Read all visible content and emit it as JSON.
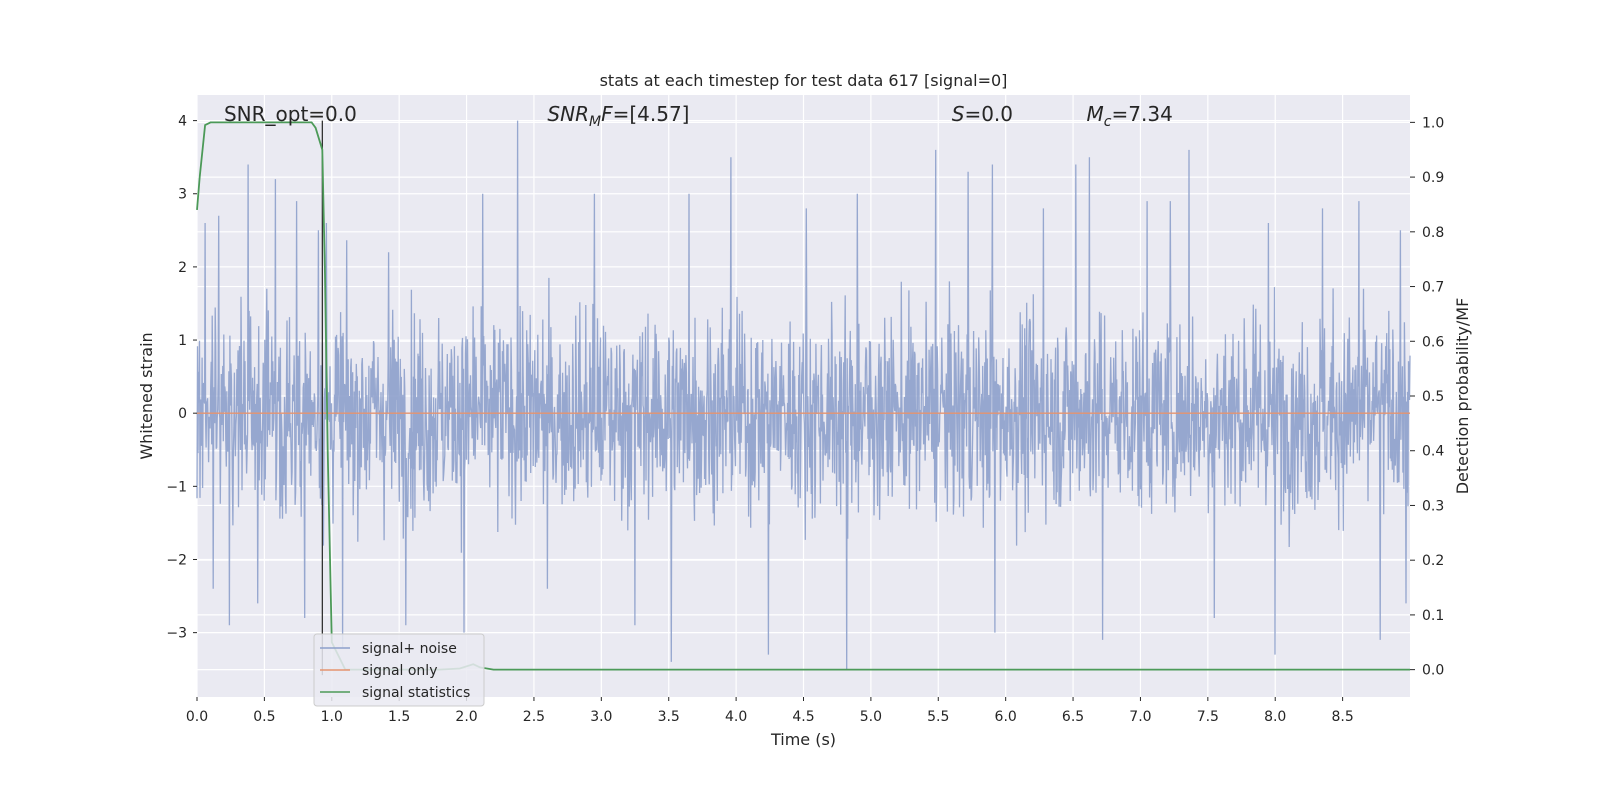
{
  "chart_data": {
    "type": "line",
    "title": "stats at each timestep for test data 617 [signal=0]",
    "xlabel": "Time (s)",
    "ylabel": "Whitened strain",
    "y2label": "Detection probability/MF",
    "xlim": [
      0.0,
      9.0
    ],
    "ylim": [
      -3.88,
      4.35
    ],
    "y2lim": [
      -0.05,
      1.05
    ],
    "x_ticks": [
      0.0,
      0.5,
      1.0,
      1.5,
      2.0,
      2.5,
      3.0,
      3.5,
      4.0,
      4.5,
      5.0,
      5.5,
      6.0,
      6.5,
      7.0,
      7.5,
      8.0,
      8.5
    ],
    "x_tick_labels": [
      "0.0",
      "0.5",
      "1.0",
      "1.5",
      "2.0",
      "2.5",
      "3.0",
      "3.5",
      "4.0",
      "4.5",
      "5.0",
      "5.5",
      "6.0",
      "6.5",
      "7.0",
      "7.5",
      "8.0",
      "8.5"
    ],
    "y_ticks": [
      -3,
      -2,
      -1,
      0,
      1,
      2,
      3,
      4
    ],
    "y_tick_labels": [
      "−3",
      "−2",
      "−1",
      "0",
      "1",
      "2",
      "3",
      "4"
    ],
    "y2_ticks": [
      0.0,
      0.1,
      0.2,
      0.3,
      0.4,
      0.5,
      0.6,
      0.7,
      0.8,
      0.9,
      1.0
    ],
    "y2_tick_labels": [
      "0.0",
      "0.1",
      "0.2",
      "0.3",
      "0.4",
      "0.5",
      "0.6",
      "0.7",
      "0.8",
      "0.9",
      "1.0"
    ],
    "grid": true,
    "legend_position": "lower-left",
    "vertical_marker_x": 0.93,
    "annotations": {
      "snr_opt": "SNR_opt=0.0",
      "snr_mf_base": "SNR",
      "snr_mf_sub": "M",
      "snr_mf_tail": "F=[4.57]",
      "s_base": "S",
      "s_tail": "=0.0",
      "mc_base": "M",
      "mc_sub": "c",
      "mc_tail": "=7.34"
    },
    "series": [
      {
        "name": "signal+ noise",
        "axis": "left",
        "color": "#8da0cb",
        "style": "dense noise",
        "envelope_typical": [
          -1.8,
          1.8
        ],
        "spikes": [
          [
            0.06,
            2.6
          ],
          [
            0.12,
            -2.4
          ],
          [
            0.16,
            2.7
          ],
          [
            0.24,
            -2.9
          ],
          [
            0.38,
            3.4
          ],
          [
            0.45,
            -2.6
          ],
          [
            0.58,
            3.2
          ],
          [
            0.74,
            2.9
          ],
          [
            0.8,
            -2.8
          ],
          [
            0.9,
            2.5
          ],
          [
            0.96,
            2.6
          ],
          [
            1.08,
            -3.2
          ],
          [
            1.42,
            2.2
          ],
          [
            1.55,
            -2.9
          ],
          [
            1.98,
            -3.0
          ],
          [
            2.12,
            3.0
          ],
          [
            2.38,
            4.0
          ],
          [
            2.6,
            -2.4
          ],
          [
            2.95,
            3.0
          ],
          [
            3.25,
            -2.9
          ],
          [
            3.52,
            -3.4
          ],
          [
            3.65,
            3.0
          ],
          [
            3.96,
            3.5
          ],
          [
            4.24,
            -3.3
          ],
          [
            4.52,
            2.8
          ],
          [
            4.82,
            -3.5
          ],
          [
            4.9,
            3.0
          ],
          [
            5.48,
            3.6
          ],
          [
            5.72,
            3.3
          ],
          [
            5.9,
            3.4
          ],
          [
            5.92,
            -3.0
          ],
          [
            6.28,
            2.8
          ],
          [
            6.52,
            3.4
          ],
          [
            6.62,
            3.5
          ],
          [
            6.72,
            -3.1
          ],
          [
            7.05,
            2.9
          ],
          [
            7.22,
            2.9
          ],
          [
            7.36,
            3.6
          ],
          [
            7.55,
            -2.8
          ],
          [
            7.95,
            2.6
          ],
          [
            8.0,
            -3.3
          ],
          [
            8.35,
            2.8
          ],
          [
            8.62,
            2.9
          ],
          [
            8.78,
            -3.1
          ],
          [
            8.93,
            2.5
          ],
          [
            8.97,
            -2.6
          ]
        ]
      },
      {
        "name": "signal only",
        "axis": "left",
        "color": "#e5936f",
        "x": [
          0.0,
          9.0
        ],
        "y": [
          0.0,
          0.0
        ]
      },
      {
        "name": "signal statistics",
        "axis": "right",
        "color": "#4c9a58",
        "x": [
          0.0,
          0.02,
          0.06,
          0.1,
          0.2,
          0.5,
          0.85,
          0.88,
          0.93,
          0.95,
          0.97,
          1.0,
          1.1,
          1.5,
          1.8,
          1.95,
          2.05,
          2.1,
          2.2,
          3.0,
          4.0,
          5.0,
          6.0,
          7.0,
          8.0,
          9.0
        ],
        "y": [
          0.84,
          0.9,
          0.995,
          1.0,
          1.0,
          1.0,
          1.0,
          0.99,
          0.95,
          0.72,
          0.4,
          0.05,
          0.0,
          0.0,
          0.0,
          0.002,
          0.01,
          0.004,
          0.0,
          0.0,
          0.0,
          0.0,
          0.0,
          0.0,
          0.0,
          0.0
        ]
      }
    ]
  }
}
